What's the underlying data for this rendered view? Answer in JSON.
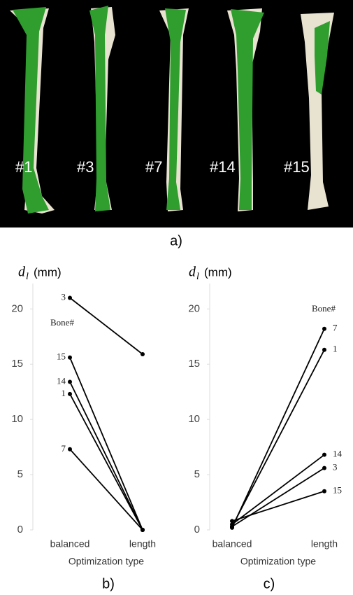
{
  "panel_a": {
    "labels": [
      "#1",
      "#3",
      "#7",
      "#14",
      "#15"
    ],
    "caption": "a)"
  },
  "chart_data": [
    {
      "type": "line",
      "caption": "b)",
      "ylabel": {
        "symbol": "d",
        "subscript": "l",
        "unit": "(mm)"
      },
      "xlabel": "Optimization type",
      "categories": [
        "balanced",
        "length"
      ],
      "annotation": "Bone#",
      "ylim": [
        0,
        22.3
      ],
      "yticks": [
        0,
        5,
        10,
        15,
        20
      ],
      "series": [
        {
          "name": "3",
          "color": "#000000",
          "values": [
            21.0,
            15.9
          ]
        },
        {
          "name": "15",
          "color": "#000000",
          "values": [
            15.6,
            0
          ]
        },
        {
          "name": "14",
          "color": "#000000",
          "values": [
            13.4,
            0
          ]
        },
        {
          "name": "1",
          "color": "#000000",
          "values": [
            12.3,
            0
          ]
        },
        {
          "name": "7",
          "color": "#000000",
          "values": [
            7.3,
            0
          ]
        }
      ]
    },
    {
      "type": "line",
      "caption": "c)",
      "ylabel": {
        "symbol": "d",
        "subscript": "l",
        "unit": "(mm)"
      },
      "xlabel": "Optimization type",
      "categories": [
        "balanced",
        "length"
      ],
      "annotation": "Bone#",
      "ylim": [
        0,
        22.3
      ],
      "yticks": [
        0,
        5,
        10,
        15,
        20
      ],
      "series": [
        {
          "name": "7",
          "color": "#000000",
          "values": [
            0.2,
            18.2
          ]
        },
        {
          "name": "1",
          "color": "#000000",
          "values": [
            0.3,
            16.3
          ]
        },
        {
          "name": "14",
          "color": "#000000",
          "values": [
            0.5,
            6.8
          ]
        },
        {
          "name": "3",
          "color": "#000000",
          "values": [
            0.3,
            5.6
          ]
        },
        {
          "name": "15",
          "color": "#000000",
          "values": [
            0.8,
            3.5
          ]
        }
      ]
    }
  ]
}
